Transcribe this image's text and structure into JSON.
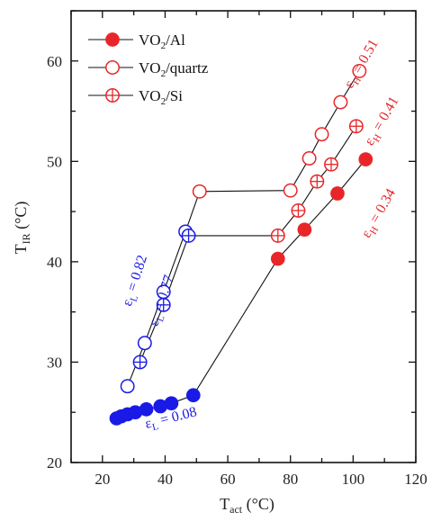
{
  "chart_data": {
    "type": "scatter",
    "xlabel": "T",
    "xlabel_sub": "act",
    "xlabel_unit": " (°C)",
    "ylabel": "T",
    "ylabel_sub": "IR",
    "ylabel_unit": " (°C)",
    "xlim": [
      10,
      120
    ],
    "ylim": [
      20,
      65
    ],
    "xticks": [
      20,
      40,
      60,
      80,
      100,
      120
    ],
    "yticks": [
      20,
      30,
      40,
      50,
      60
    ],
    "grid": false,
    "legend_position": "top-left",
    "series": [
      {
        "name": "VO2/Al",
        "name_main": "VO",
        "name_sub": "2",
        "name_rest": "/Al",
        "marker": "filled-circle",
        "points": [
          [
            24.5,
            24.4
          ],
          [
            26,
            24.6
          ],
          [
            28,
            24.8
          ],
          [
            30.5,
            25.0
          ],
          [
            34,
            25.3
          ],
          [
            38.5,
            25.6
          ],
          [
            42,
            25.9
          ],
          [
            49,
            26.7
          ],
          [
            76,
            40.3
          ],
          [
            84.5,
            43.2
          ],
          [
            95,
            46.8
          ],
          [
            104,
            50.2
          ]
        ]
      },
      {
        "name": "VO2/quartz",
        "name_main": "VO",
        "name_sub": "2",
        "name_rest": "/quartz",
        "marker": "open-circle",
        "points": [
          [
            28,
            27.6
          ],
          [
            33.5,
            31.9
          ],
          [
            39.5,
            37.0
          ],
          [
            46.5,
            43.0
          ],
          [
            51,
            47.0
          ],
          [
            80,
            47.1
          ],
          [
            86,
            50.3
          ],
          [
            90,
            52.7
          ],
          [
            96,
            55.9
          ],
          [
            102,
            59.0
          ]
        ]
      },
      {
        "name": "VO2/Si",
        "name_main": "VO",
        "name_sub": "2",
        "name_rest": "/Si",
        "marker": "crossed-circle",
        "points": [
          [
            32,
            30.0
          ],
          [
            39.5,
            35.7
          ],
          [
            47.5,
            42.6
          ],
          [
            76,
            42.6
          ],
          [
            82.5,
            45.1
          ],
          [
            88.5,
            48.0
          ],
          [
            93,
            49.7
          ],
          [
            101,
            53.5
          ]
        ]
      }
    ],
    "annotations": [
      {
        "id": "eps-l-008",
        "prefix": "ε",
        "sub": "L",
        "text": " = 0.08",
        "color": "#1a1ae6",
        "x": 34,
        "y": 23.4,
        "angle": -14
      },
      {
        "id": "eps-l-082",
        "prefix": "ε",
        "sub": "L",
        "text": " = 0.82",
        "color": "#1a1ae6",
        "x": 29,
        "y": 35.5,
        "angle": -72
      },
      {
        "id": "eps-l-077",
        "prefix": "ε",
        "sub": "L",
        "text": " = 0.77",
        "color": "#1a1ae6",
        "x": 37.5,
        "y": 33.5,
        "angle": -72
      },
      {
        "id": "eps-h-051",
        "prefix": "ε",
        "sub": "H",
        "text": " = 0.51",
        "color": "#e8262a",
        "x": 99.5,
        "y": 57.2,
        "angle": -60
      },
      {
        "id": "eps-h-041",
        "prefix": "ε",
        "sub": "H",
        "text": " = 0.41",
        "color": "#e8262a",
        "x": 106,
        "y": 51.5,
        "angle": -60
      },
      {
        "id": "eps-h-034",
        "prefix": "ε",
        "sub": "H",
        "text": " = 0.34",
        "color": "#e8262a",
        "x": 105,
        "y": 42.3,
        "angle": -60
      }
    ],
    "colors": {
      "low": "#1a1ae6",
      "high": "#e8262a",
      "line": "#111111"
    }
  }
}
